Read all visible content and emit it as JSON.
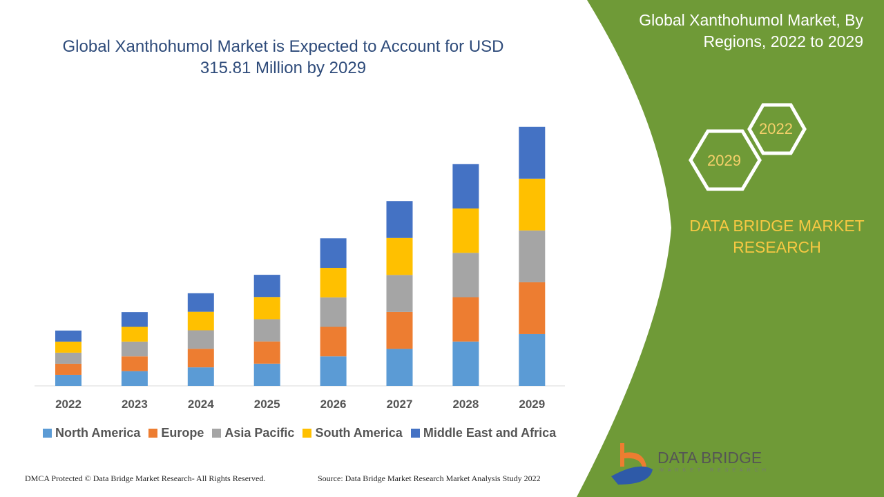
{
  "title": "Global Xanthohumol Market is Expected to Account for USD 315.81 Million by 2029",
  "side_title": "Global Xanthohumol Market, By Regions, 2022 to 2029",
  "hex_labels": [
    "2022",
    "2029"
  ],
  "brand": "DATA BRIDGE MARKET RESEARCH",
  "logo": {
    "name": "DATA BRIDGE",
    "sub": "MARKET RESEARCH"
  },
  "footer": {
    "left": "DMCA Protected © Data Bridge Market Research- All Rights Reserved.",
    "right": "Source: Data Bridge Market Research Market Analysis Study 2022"
  },
  "colors": {
    "green": "#6f9a37",
    "title": "#2e4b7a"
  },
  "chart_data": {
    "type": "bar",
    "stacked": true,
    "categories": [
      "2022",
      "2023",
      "2024",
      "2025",
      "2026",
      "2027",
      "2028",
      "2029"
    ],
    "series": [
      {
        "name": "North America",
        "color": "#5b9bd5",
        "values": [
          13.5,
          18.0,
          22.6,
          27.1,
          36.0,
          45.1,
          54.1,
          63.2
        ]
      },
      {
        "name": "Europe",
        "color": "#ed7d31",
        "values": [
          13.5,
          18.0,
          22.6,
          27.1,
          36.0,
          45.1,
          54.1,
          63.2
        ]
      },
      {
        "name": "Asia Pacific",
        "color": "#a5a5a5",
        "values": [
          13.5,
          18.0,
          22.6,
          27.1,
          36.0,
          45.1,
          54.1,
          63.2
        ]
      },
      {
        "name": "South America",
        "color": "#ffc000",
        "values": [
          13.5,
          18.0,
          22.6,
          27.1,
          36.0,
          45.1,
          54.1,
          63.2
        ]
      },
      {
        "name": "Middle East and Africa",
        "color": "#4472c4",
        "values": [
          13.5,
          18.0,
          22.6,
          27.1,
          36.0,
          45.1,
          54.1,
          63.2
        ]
      }
    ],
    "legend": "bottom",
    "grid": false
  }
}
